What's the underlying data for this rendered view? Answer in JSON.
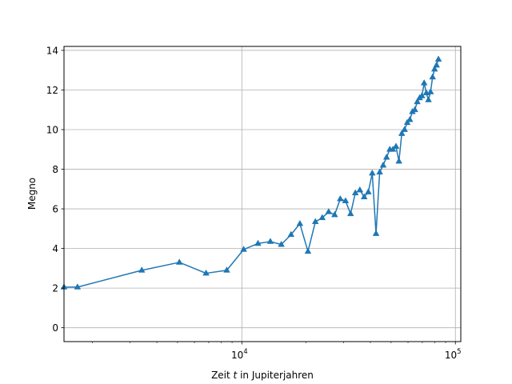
{
  "chart_data": {
    "type": "line",
    "xlabel_prefix": "Zeit ",
    "xlabel_var": "t",
    "xlabel_suffix": " in Jupiterjahren",
    "ylabel": "Megno",
    "xscale": "log",
    "xlim": [
      1470,
      106000
    ],
    "ylim": [
      -0.7,
      14.2
    ],
    "grid": true,
    "x_major_ticks": [
      {
        "value": 10000,
        "base": "10",
        "exp": "4"
      },
      {
        "value": 100000,
        "base": "10",
        "exp": "5"
      }
    ],
    "y_ticks": [
      0,
      2,
      4,
      6,
      8,
      10,
      12,
      14
    ],
    "color": "#1f77b4",
    "marker": "triangle-up",
    "series": [
      {
        "x": [
          1470,
          1700,
          3400,
          5100,
          6800,
          8500,
          10200,
          11900,
          13600,
          15300,
          17000,
          18700,
          20400,
          22100,
          23800,
          25500,
          27200,
          28900,
          30600,
          32300,
          34000,
          35700,
          37400,
          39100,
          40800,
          42500,
          44200,
          45900,
          47600,
          49300,
          51000,
          52700,
          54400,
          56100,
          57800,
          59500,
          61200,
          62900,
          64600,
          66300,
          68000,
          69700,
          71400,
          73100,
          74800,
          76500,
          78200,
          79900,
          81600,
          83300
        ],
        "y": [
          2.05,
          2.05,
          2.9,
          3.3,
          2.75,
          2.9,
          3.95,
          4.25,
          4.35,
          4.2,
          4.7,
          5.25,
          3.85,
          5.35,
          5.55,
          5.85,
          5.7,
          6.5,
          6.4,
          5.75,
          6.8,
          6.95,
          6.6,
          6.85,
          7.8,
          4.75,
          7.85,
          8.2,
          8.6,
          9.0,
          9.0,
          9.15,
          8.4,
          9.8,
          10.0,
          10.35,
          10.5,
          10.9,
          11.0,
          11.4,
          11.6,
          11.7,
          12.35,
          11.85,
          11.5,
          11.9,
          12.65,
          13.05,
          13.25,
          13.55
        ]
      }
    ]
  }
}
